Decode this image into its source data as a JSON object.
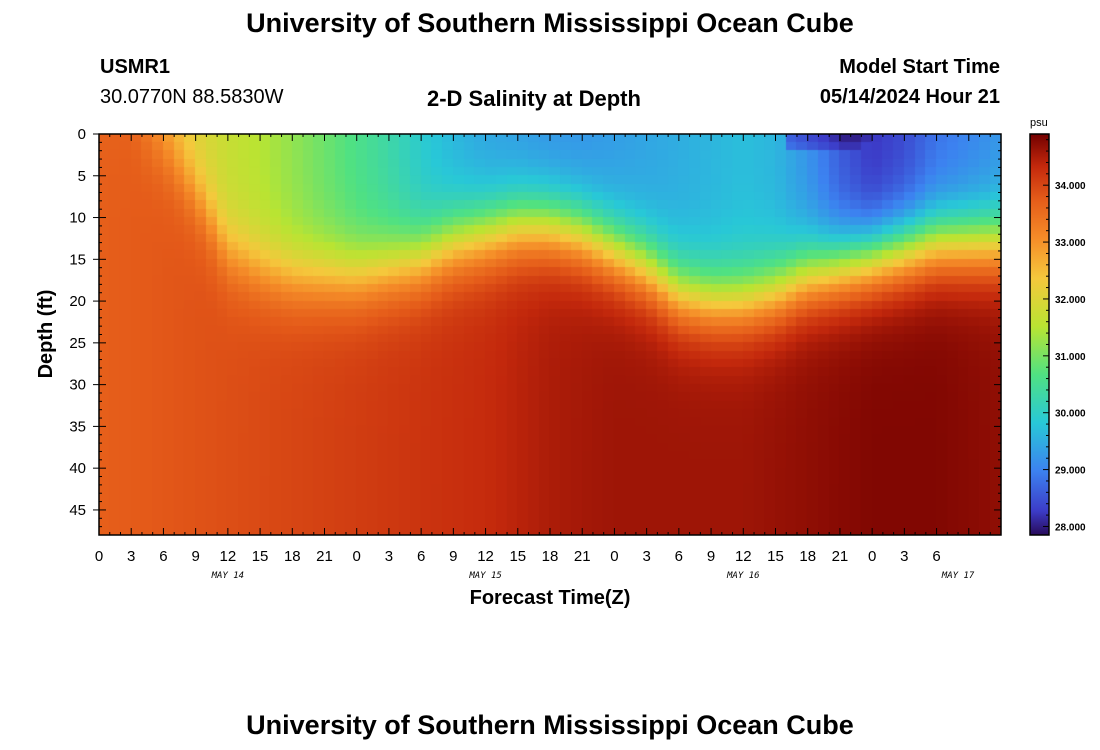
{
  "header": {
    "title": "University of Southern Mississippi Ocean Cube",
    "station_id": "USMR1",
    "coordinates": "30.0770N  88.5830W",
    "subtitle": "2-D Salinity at Depth",
    "model_start_label": "Model Start Time",
    "model_start_value": "05/14/2024 Hour 21"
  },
  "footer": {
    "title": "University of Southern Mississippi Ocean Cube"
  },
  "colors": {
    "low": "#3a0a6e",
    "mid_low": "#3a8ef0",
    "mid": "#20c8d8",
    "mid_high": "#b8e030",
    "high": "#f08020",
    "max": "#7a0000"
  },
  "chart_data": {
    "type": "heatmap",
    "title": "2-D Salinity at Depth",
    "xlabel": "Forecast Time(Z)",
    "ylabel": "Depth (ft)",
    "x_hours_from_may14_00": [
      0,
      84
    ],
    "x_tick_labels": [
      "0",
      "3",
      "6",
      "9",
      "12",
      "15",
      "18",
      "21",
      "0",
      "3",
      "6",
      "9",
      "12",
      "15",
      "18",
      "21",
      "0",
      "3",
      "6",
      "9",
      "12",
      "15",
      "18",
      "21",
      "0",
      "3",
      "6"
    ],
    "date_labels": [
      {
        "label": "MAY 14",
        "hour": 12
      },
      {
        "label": "MAY 15",
        "hour": 36
      },
      {
        "label": "MAY 16",
        "hour": 60
      },
      {
        "label": "MAY 17",
        "hour": 80
      }
    ],
    "y_range_ft": [
      0,
      48
    ],
    "y_ticks": [
      0,
      5,
      10,
      15,
      20,
      25,
      30,
      35,
      40,
      45
    ],
    "colorbar": {
      "unit": "psu",
      "range": [
        27.85,
        34.9
      ],
      "tick_labels": [
        "28.000",
        "29.000",
        "30.000",
        "31.000",
        "32.000",
        "33.000",
        "34.000"
      ]
    },
    "halocline_depth_ft": {
      "hours": [
        0,
        3,
        6,
        9,
        12,
        15,
        18,
        21,
        24,
        27,
        30,
        33,
        36,
        39,
        42,
        45,
        48,
        51,
        54,
        57,
        60,
        63,
        66,
        69,
        72,
        75,
        78,
        81,
        84
      ],
      "values": [
        0,
        0,
        2,
        7,
        14,
        16,
        17,
        17,
        17,
        16,
        15,
        13,
        12,
        11,
        11,
        12,
        14,
        16,
        19,
        20,
        20,
        19,
        17,
        16,
        15,
        14,
        13,
        13,
        13
      ]
    },
    "surface_salinity_psu": {
      "hours": [
        0,
        3,
        6,
        9,
        12,
        15,
        18,
        21,
        24,
        27,
        30,
        33,
        36,
        39,
        42,
        45,
        48,
        51,
        54,
        57,
        60,
        63,
        66,
        69,
        72,
        75,
        78,
        81,
        84
      ],
      "values": [
        33.6,
        33.6,
        32.6,
        32.0,
        31.7,
        31.5,
        31.2,
        30.9,
        30.6,
        30.3,
        29.9,
        29.6,
        29.4,
        29.3,
        29.2,
        29.2,
        29.3,
        29.4,
        29.5,
        29.6,
        29.7,
        29.6,
        29.2,
        28.6,
        28.2,
        28.4,
        28.8,
        29.0,
        29.2
      ]
    },
    "deep_salinity_psu": {
      "hours": [
        0,
        6,
        12,
        18,
        24,
        30,
        36,
        42,
        48,
        54,
        60,
        66,
        72,
        78,
        84
      ],
      "values": [
        33.7,
        33.8,
        33.9,
        34.0,
        34.1,
        34.2,
        34.3,
        34.5,
        34.6,
        34.6,
        34.6,
        34.7,
        34.8,
        34.8,
        34.7
      ]
    }
  }
}
